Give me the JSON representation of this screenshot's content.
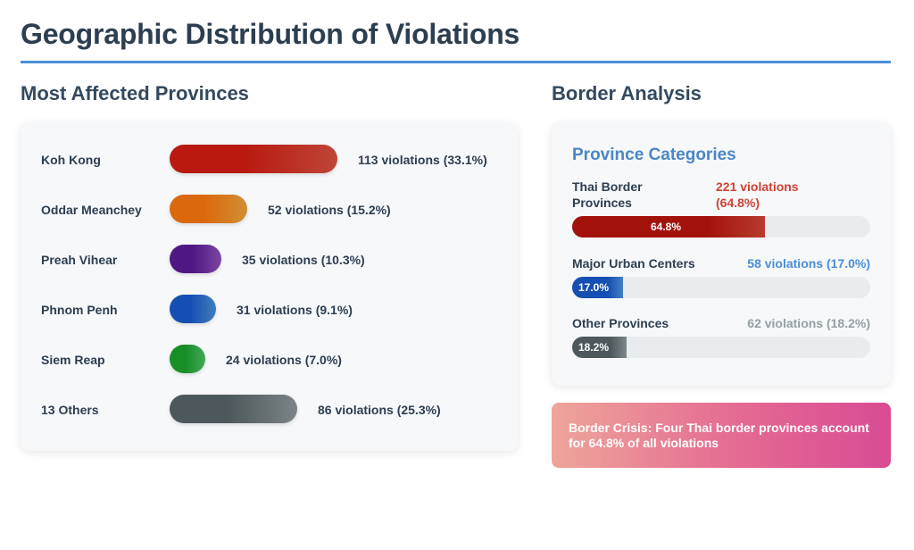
{
  "page": {
    "title": "Geographic Distribution of Violations",
    "accent_color": "#4a90d9"
  },
  "left_section": {
    "heading": "Most Affected Provinces"
  },
  "right_section": {
    "heading": "Border Analysis"
  },
  "chart_data": [
    {
      "type": "bar",
      "orientation": "horizontal",
      "title": "Most Affected Provinces",
      "categories": [
        "Koh Kong",
        "Oddar Meanchey",
        "Preah Vihear",
        "Phnom Penh",
        "Siem Reap",
        "13 Others"
      ],
      "values": [
        113,
        52,
        35,
        31,
        24,
        86
      ],
      "percentages": [
        33.1,
        15.2,
        10.3,
        9.1,
        7.0,
        25.3
      ],
      "value_labels": [
        "113 violations (33.1%)",
        "52 violations (15.2%)",
        "35 violations (10.3%)",
        "31 violations (9.1%)",
        "24 violations (7.0%)",
        "86 violations (25.3%)"
      ],
      "colors": [
        "#d9503f",
        "#eda33a",
        "#8e4fb8",
        "#4a8ed6",
        "#4cbf64",
        "#8c9699"
      ]
    },
    {
      "type": "bar",
      "orientation": "horizontal",
      "title": "Province Categories",
      "categories": [
        "Thai Border Provinces",
        "Major Urban Centers",
        "Other Provinces"
      ],
      "values": [
        221,
        58,
        62
      ],
      "percentages": [
        64.8,
        17.0,
        18.2
      ],
      "value_labels": [
        "221 violations (64.8%)",
        "58 violations (17.0%)",
        "62 violations (18.2%)"
      ],
      "fill_labels": [
        "64.8%",
        "17.0%",
        "18.2%"
      ],
      "colors": [
        "#cc4234",
        "#4a8ed6",
        "#8c9699"
      ]
    }
  ],
  "category_labels": {
    "thai_border_line1": "Thai Border",
    "thai_border_line2": "Provinces",
    "thai_border_value_line1": "221 violations",
    "thai_border_value_line2": "(64.8%)"
  },
  "callout": {
    "text": "Border Crisis: Four Thai border provinces account for 64.8% of all violations"
  }
}
